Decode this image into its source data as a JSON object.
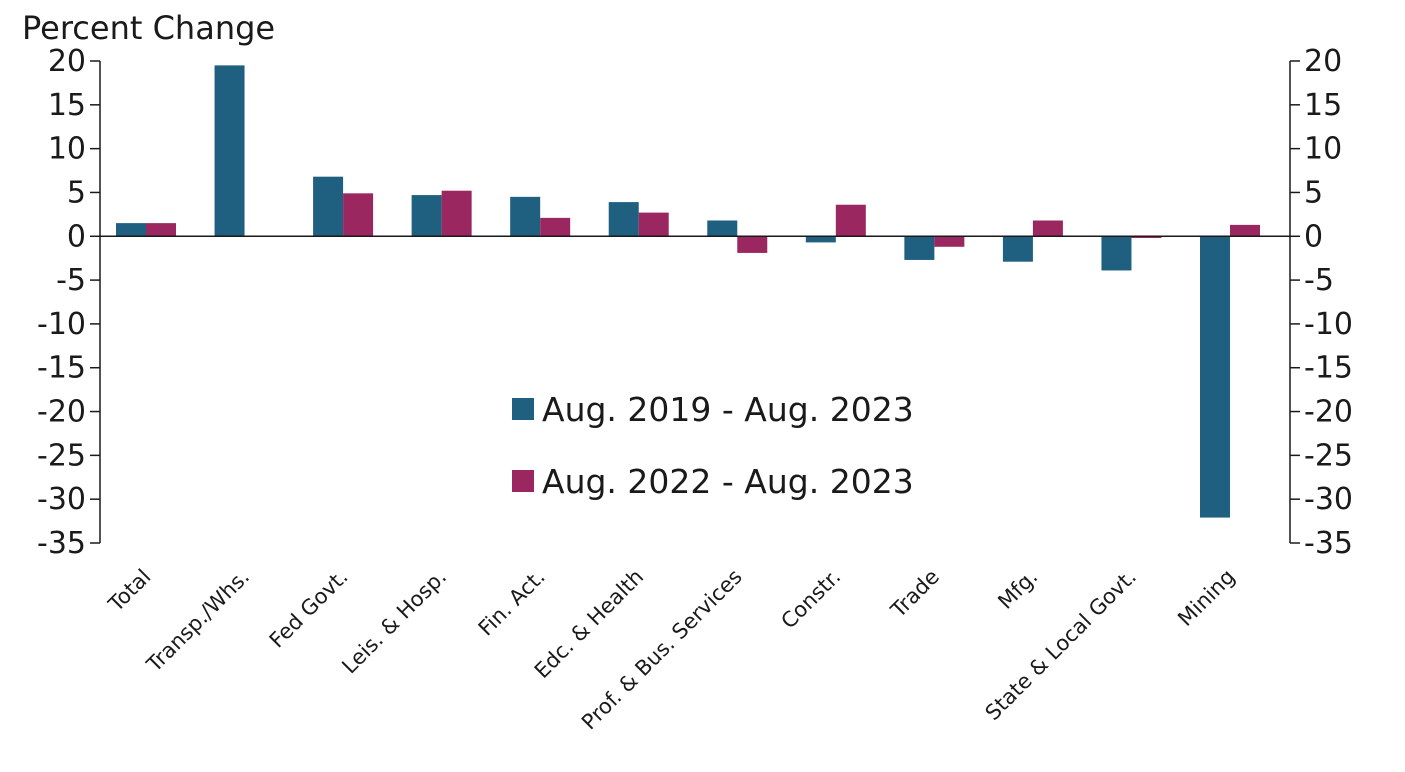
{
  "chart_data": {
    "type": "bar",
    "ylabel": "Percent Change",
    "categories": [
      "Total",
      "Transp./Whs.",
      "Fed Govt.",
      "Leis. & Hosp.",
      "Fin. Act.",
      "Edc. & Health",
      "Prof. & Bus. Services",
      "Constr.",
      "Trade",
      "Mfg.",
      "State & Local Govt.",
      "Mining"
    ],
    "series": [
      {
        "name": "Aug. 2019 - Aug. 2023",
        "color": "#1f5f7f",
        "values": [
          1.5,
          19.5,
          6.8,
          4.7,
          4.5,
          3.9,
          1.8,
          -0.7,
          -2.7,
          -2.9,
          -3.9,
          -32.1
        ]
      },
      {
        "name": "Aug. 2022 - Aug. 2023",
        "color": "#9b2761",
        "values": [
          1.5,
          0,
          4.9,
          5.2,
          2.1,
          2.7,
          -1.9,
          3.6,
          -1.2,
          1.8,
          -0.2,
          1.3
        ]
      }
    ],
    "ylim": [
      -35,
      20
    ],
    "yticks": [
      "20",
      "15",
      "10",
      "5",
      "0",
      "-5",
      "-10",
      "-15",
      "-20",
      "-25",
      "-30",
      "-35"
    ],
    "legend_position": "center",
    "grid": false
  }
}
